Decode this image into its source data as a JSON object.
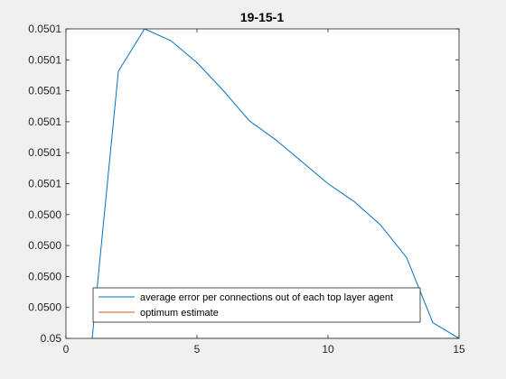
{
  "chart_data": {
    "type": "line",
    "title": "19-15-1",
    "xlabel": "",
    "ylabel": "",
    "xlim": [
      0,
      15
    ],
    "ylim": [
      0.05,
      0.0501
    ],
    "x_ticks": [
      0,
      5,
      10,
      15
    ],
    "x_tick_labels": [
      "0",
      "5",
      "10",
      "15"
    ],
    "y_tick_labels": [
      "0.05",
      "0.0500",
      "0.0500",
      "0.0500",
      "0.0500",
      "0.0501",
      "0.0501",
      "0.0501",
      "0.0501",
      "0.0501",
      "0.0501"
    ],
    "grid": false,
    "legend_position": "bottom",
    "series": [
      {
        "name": "average error per connections out of each top layer agent",
        "color": "#0072BD",
        "x": [
          1,
          2,
          3,
          4,
          5,
          6,
          7,
          8,
          9,
          10,
          11,
          12,
          13,
          14,
          15
        ],
        "y": [
          0.05,
          0.0500863,
          0.0501,
          0.0500962,
          0.0500891,
          0.0500801,
          0.0500703,
          0.0500642,
          0.0500571,
          0.05005,
          0.0500442,
          0.0500367,
          0.0500261,
          0.0500051,
          0.05
        ]
      },
      {
        "name": "optimum estimate",
        "color": "#D95319",
        "x": [
          1,
          15
        ],
        "y": [
          0.05,
          0.05
        ]
      }
    ]
  }
}
